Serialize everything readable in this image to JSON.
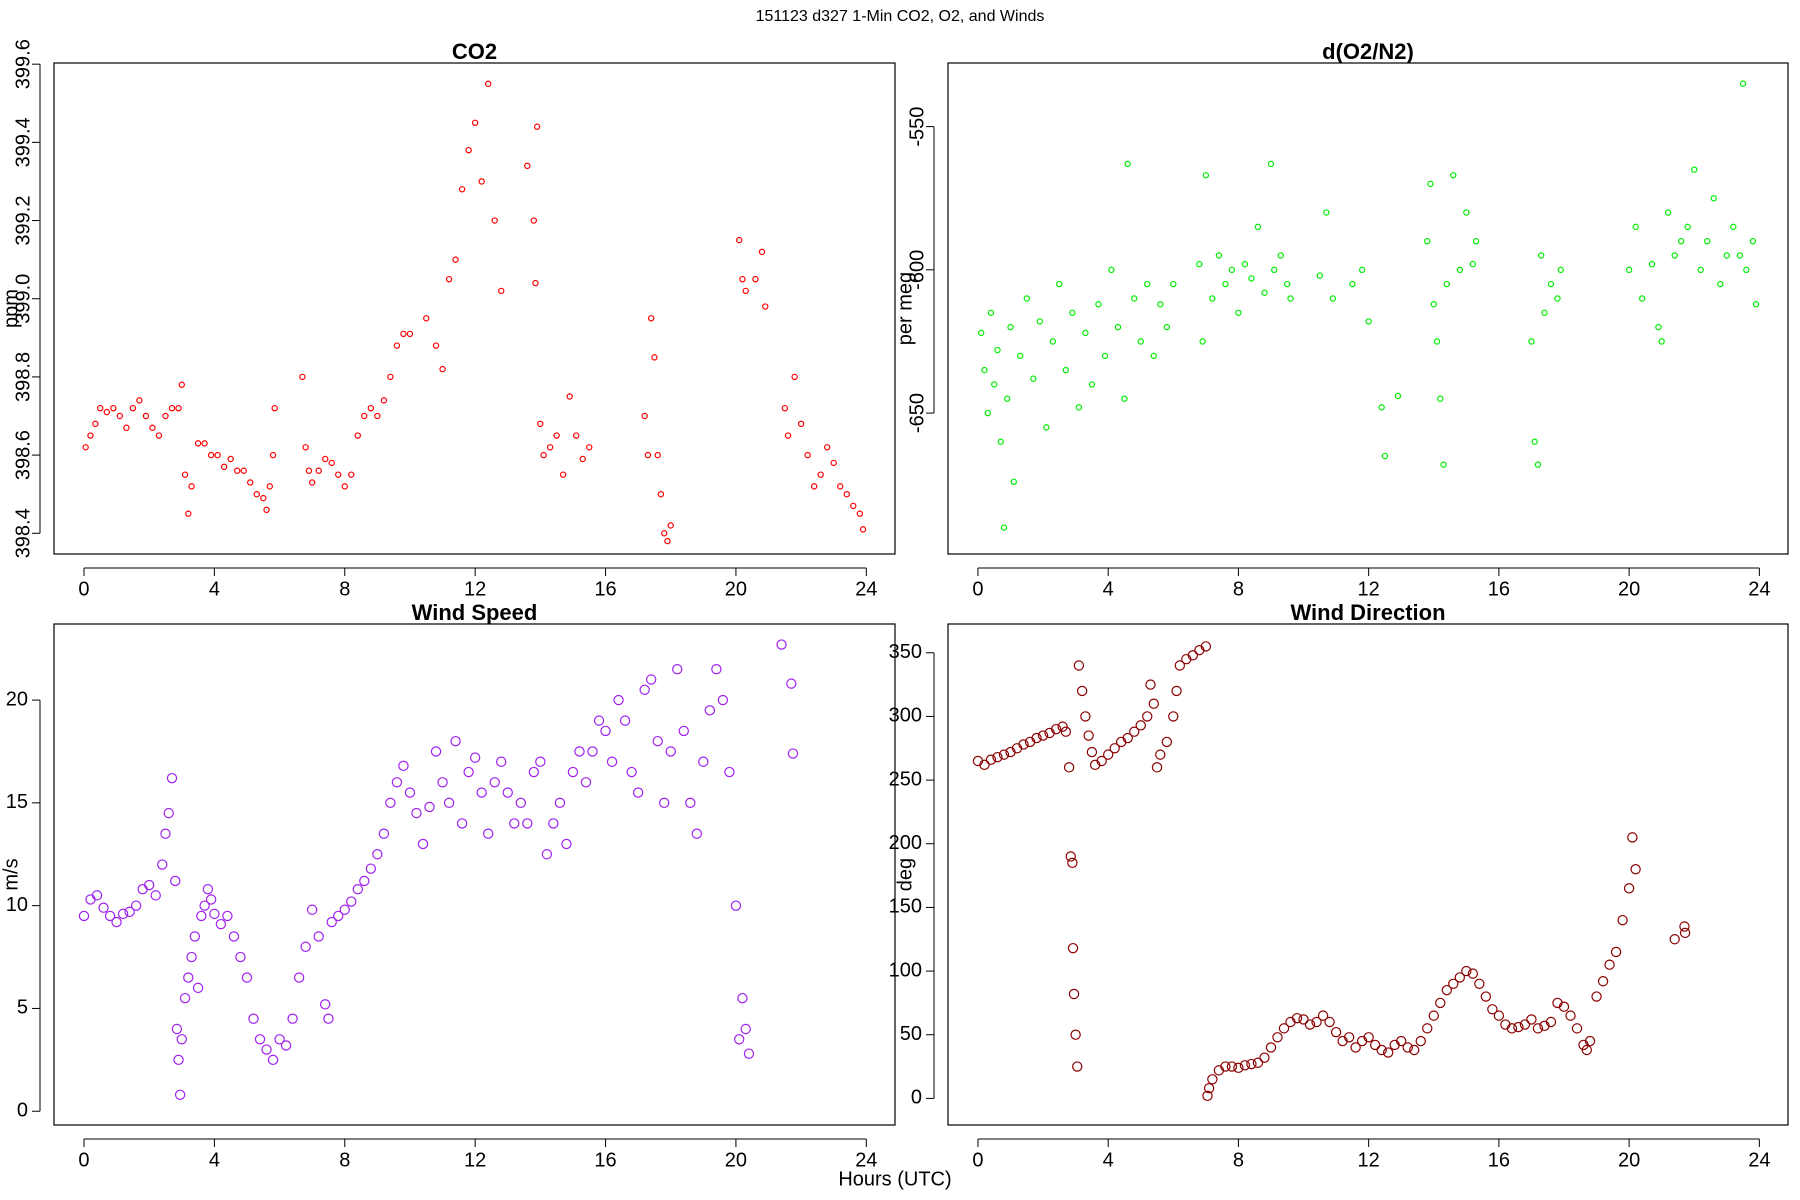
{
  "title": "151123   d327   1-Min CO2, O2, and Winds",
  "x_label": "Hours (UTC)",
  "chart_data": [
    {
      "type": "scatter",
      "title": "CO2",
      "y_label": "ppm",
      "color": "#ff0000",
      "marker_size": 2.6,
      "xlim": [
        -0.92,
        24.88
      ],
      "xticks": [
        0,
        4,
        8,
        12,
        16,
        20,
        24
      ],
      "ylim": [
        398.347,
        399.603
      ],
      "yticks": [
        398.4,
        398.6,
        398.8,
        {
          "value": 399,
          "label": "399.0"
        },
        399.2,
        399.4,
        399.6
      ],
      "x": [
        0.05,
        0.2,
        0.35,
        0.5,
        0.7,
        0.9,
        1.1,
        1.3,
        1.5,
        1.7,
        1.9,
        2.1,
        2.3,
        2.5,
        2.7,
        2.9,
        3.0,
        3.1,
        3.2,
        3.3,
        3.5,
        3.7,
        3.9,
        4.1,
        4.3,
        4.5,
        4.7,
        4.9,
        5.1,
        5.3,
        5.5,
        5.6,
        5.7,
        5.8,
        5.85,
        6.7,
        6.8,
        6.9,
        7.0,
        7.2,
        7.4,
        7.6,
        7.8,
        8.0,
        8.2,
        8.4,
        8.6,
        8.8,
        9.0,
        9.2,
        9.4,
        9.6,
        9.8,
        10.0,
        10.5,
        10.8,
        11.0,
        11.2,
        11.4,
        11.6,
        11.8,
        12.0,
        12.2,
        12.4,
        12.6,
        12.8,
        13.6,
        13.8,
        13.85,
        13.9,
        14.0,
        14.1,
        14.3,
        14.5,
        14.7,
        14.9,
        15.1,
        15.3,
        15.5,
        17.2,
        17.3,
        17.4,
        17.5,
        17.6,
        17.7,
        17.8,
        17.9,
        18.0,
        20.1,
        20.2,
        20.3,
        20.6,
        20.8,
        20.9,
        21.5,
        21.6,
        21.8,
        22.0,
        22.2,
        22.4,
        22.6,
        22.8,
        23.0,
        23.2,
        23.4,
        23.6,
        23.8,
        23.9
      ],
      "values": [
        398.62,
        398.65,
        398.68,
        398.72,
        398.71,
        398.72,
        398.7,
        398.67,
        398.72,
        398.74,
        398.7,
        398.67,
        398.65,
        398.7,
        398.72,
        398.72,
        398.78,
        398.55,
        398.45,
        398.52,
        398.63,
        398.63,
        398.6,
        398.6,
        398.57,
        398.59,
        398.56,
        398.56,
        398.53,
        398.5,
        398.49,
        398.46,
        398.52,
        398.6,
        398.72,
        398.8,
        398.62,
        398.56,
        398.53,
        398.56,
        398.59,
        398.58,
        398.55,
        398.52,
        398.55,
        398.65,
        398.7,
        398.72,
        398.7,
        398.74,
        398.8,
        398.88,
        398.91,
        398.91,
        398.95,
        398.88,
        398.82,
        399.05,
        399.1,
        399.28,
        399.38,
        399.45,
        399.3,
        399.55,
        399.2,
        399.02,
        399.34,
        399.2,
        399.04,
        399.44,
        398.68,
        398.6,
        398.62,
        398.65,
        398.55,
        398.75,
        398.65,
        398.59,
        398.62,
        398.7,
        398.6,
        398.95,
        398.85,
        398.6,
        398.5,
        398.4,
        398.38,
        398.42,
        399.15,
        399.05,
        399.02,
        399.05,
        399.12,
        398.98,
        398.72,
        398.65,
        398.8,
        398.68,
        398.6,
        398.52,
        398.55,
        398.62,
        398.58,
        398.52,
        398.5,
        398.47,
        398.45,
        398.41
      ]
    },
    {
      "type": "scatter",
      "title": "d(O2/N2)",
      "y_label": "per meg",
      "color": "#00ee00",
      "marker_size": 2.6,
      "xlim": [
        -0.92,
        24.88
      ],
      "xticks": [
        0,
        4,
        8,
        12,
        16,
        20,
        24
      ],
      "ylim": [
        -699.2,
        -527.8
      ],
      "yticks": [
        -550,
        -600,
        -650
      ],
      "x": [
        0.1,
        0.2,
        0.3,
        0.4,
        0.5,
        0.6,
        0.7,
        0.8,
        0.9,
        1.0,
        1.1,
        1.3,
        1.5,
        1.7,
        1.9,
        2.1,
        2.3,
        2.5,
        2.7,
        2.9,
        3.1,
        3.3,
        3.5,
        3.7,
        3.9,
        4.1,
        4.3,
        4.5,
        4.6,
        4.8,
        5.0,
        5.2,
        5.4,
        5.6,
        5.8,
        6.0,
        6.8,
        6.9,
        7.0,
        7.2,
        7.4,
        7.6,
        7.8,
        8.0,
        8.2,
        8.4,
        8.6,
        8.8,
        9.0,
        9.1,
        9.3,
        9.5,
        9.6,
        10.5,
        10.7,
        10.9,
        11.5,
        11.8,
        12.0,
        12.4,
        12.5,
        12.9,
        13.8,
        13.9,
        14.0,
        14.1,
        14.2,
        14.3,
        14.4,
        14.6,
        14.8,
        15.0,
        15.2,
        15.3,
        17.0,
        17.1,
        17.2,
        17.3,
        17.4,
        17.6,
        17.8,
        17.9,
        20.0,
        20.2,
        20.4,
        20.7,
        20.9,
        21.0,
        21.2,
        21.4,
        21.6,
        21.8,
        22.0,
        22.2,
        22.4,
        22.6,
        22.8,
        23.0,
        23.2,
        23.4,
        23.5,
        23.6,
        23.8,
        23.9
      ],
      "values": [
        -622,
        -635,
        -650,
        -615,
        -640,
        -628,
        -660,
        -690,
        -645,
        -620,
        -674,
        -630,
        -610,
        -638,
        -618,
        -655,
        -625,
        -605,
        -635,
        -615,
        -648,
        -622,
        -640,
        -612,
        -630,
        -600,
        -620,
        -645,
        -563,
        -610,
        -625,
        -605,
        -630,
        -612,
        -620,
        -605,
        -598,
        -625,
        -567,
        -610,
        -595,
        -605,
        -600,
        -615,
        -598,
        -603,
        -585,
        -608,
        -563,
        -600,
        -595,
        -605,
        -610,
        -602,
        -580,
        -610,
        -605,
        -600,
        -618,
        -648,
        -665,
        -644,
        -590,
        -570,
        -612,
        -625,
        -645,
        -668,
        -605,
        -567,
        -600,
        -580,
        -598,
        -590,
        -625,
        -660,
        -668,
        -595,
        -615,
        -605,
        -610,
        -600,
        -600,
        -585,
        -610,
        -598,
        -620,
        -625,
        -580,
        -595,
        -590,
        -585,
        -565,
        -600,
        -590,
        -575,
        -605,
        -595,
        -585,
        -595,
        -535,
        -600,
        -590,
        -612
      ]
    },
    {
      "type": "scatter",
      "title": "Wind Speed",
      "y_label": "m/s",
      "color": "#a020f0",
      "marker_size": 4.6,
      "xlim": [
        -0.92,
        24.88
      ],
      "xticks": [
        0,
        4,
        8,
        12,
        16,
        20,
        24
      ],
      "ylim": [
        -0.67,
        23.7
      ],
      "yticks": [
        0,
        5,
        10,
        15,
        20
      ],
      "x": [
        0.0,
        0.2,
        0.4,
        0.6,
        0.8,
        1.0,
        1.2,
        1.4,
        1.6,
        1.8,
        2.0,
        2.2,
        2.4,
        2.5,
        2.6,
        2.7,
        2.8,
        2.85,
        2.9,
        2.95,
        3.0,
        3.1,
        3.2,
        3.3,
        3.4,
        3.5,
        3.6,
        3.7,
        3.8,
        3.9,
        4.0,
        4.2,
        4.4,
        4.6,
        4.8,
        5.0,
        5.2,
        5.4,
        5.6,
        5.8,
        6.0,
        6.2,
        6.4,
        6.6,
        6.8,
        7.0,
        7.2,
        7.4,
        7.5,
        7.6,
        7.8,
        8.0,
        8.2,
        8.4,
        8.6,
        8.8,
        9.0,
        9.2,
        9.4,
        9.6,
        9.8,
        10.0,
        10.2,
        10.4,
        10.6,
        10.8,
        11.0,
        11.2,
        11.4,
        11.6,
        11.8,
        12.0,
        12.2,
        12.4,
        12.6,
        12.8,
        13.0,
        13.2,
        13.4,
        13.6,
        13.8,
        14.0,
        14.2,
        14.4,
        14.6,
        14.8,
        15.0,
        15.2,
        15.4,
        15.6,
        15.8,
        16.0,
        16.2,
        16.4,
        16.6,
        16.8,
        17.0,
        17.2,
        17.4,
        17.6,
        17.8,
        18.0,
        18.2,
        18.4,
        18.6,
        18.8,
        19.0,
        19.2,
        19.4,
        19.6,
        19.8,
        20.0,
        20.1,
        20.2,
        20.3,
        20.4,
        21.4,
        21.7,
        21.75
      ],
      "values": [
        9.5,
        10.3,
        10.5,
        9.9,
        9.5,
        9.2,
        9.6,
        9.7,
        10.0,
        10.8,
        11.0,
        10.5,
        12.0,
        13.5,
        14.5,
        16.2,
        11.2,
        4.0,
        2.5,
        0.8,
        3.5,
        5.5,
        6.5,
        7.5,
        8.5,
        6.0,
        9.5,
        10.0,
        10.8,
        10.3,
        9.6,
        9.1,
        9.5,
        8.5,
        7.5,
        6.5,
        4.5,
        3.5,
        3.0,
        2.5,
        3.5,
        3.2,
        4.5,
        6.5,
        8.0,
        9.8,
        8.5,
        5.2,
        4.5,
        9.2,
        9.5,
        9.8,
        10.2,
        10.8,
        11.2,
        11.8,
        12.5,
        13.5,
        15.0,
        16.0,
        16.8,
        15.5,
        14.5,
        13.0,
        14.8,
        17.5,
        16.0,
        15.0,
        18.0,
        14.0,
        16.5,
        17.2,
        15.5,
        13.5,
        16.0,
        17.0,
        15.5,
        14.0,
        15.0,
        14.0,
        16.5,
        17.0,
        12.5,
        14.0,
        15.0,
        13.0,
        16.5,
        17.5,
        16.0,
        17.5,
        19.0,
        18.5,
        17.0,
        20.0,
        19.0,
        16.5,
        15.5,
        20.5,
        21.0,
        18.0,
        15.0,
        17.5,
        21.5,
        18.5,
        15.0,
        13.5,
        17.0,
        19.5,
        21.5,
        20.0,
        16.5,
        10.0,
        3.5,
        5.5,
        4.0,
        2.8,
        22.7,
        20.8,
        17.4
      ]
    },
    {
      "type": "scatter",
      "title": "Wind Direction",
      "y_label": "deg",
      "color": "#8b0000",
      "marker_size": 4.6,
      "xlim": [
        -0.92,
        24.88
      ],
      "xticks": [
        0,
        4,
        8,
        12,
        16,
        20,
        24
      ],
      "ylim": [
        -20.9,
        372.6
      ],
      "yticks": [
        0,
        50,
        100,
        150,
        200,
        250,
        300,
        350
      ],
      "x": [
        0.0,
        0.2,
        0.4,
        0.6,
        0.8,
        1.0,
        1.2,
        1.4,
        1.6,
        1.8,
        2.0,
        2.2,
        2.4,
        2.6,
        2.7,
        2.8,
        2.85,
        2.9,
        2.92,
        2.95,
        3.0,
        3.05,
        3.1,
        3.2,
        3.3,
        3.4,
        3.5,
        3.6,
        3.8,
        4.0,
        4.2,
        4.4,
        4.6,
        4.8,
        5.0,
        5.2,
        5.3,
        5.4,
        5.5,
        5.6,
        5.8,
        6.0,
        6.1,
        6.2,
        6.4,
        6.6,
        6.8,
        7.0,
        7.05,
        7.1,
        7.2,
        7.4,
        7.6,
        7.8,
        8.0,
        8.2,
        8.4,
        8.6,
        8.8,
        9.0,
        9.2,
        9.4,
        9.6,
        9.8,
        10.0,
        10.2,
        10.4,
        10.6,
        10.8,
        11.0,
        11.2,
        11.4,
        11.6,
        11.8,
        12.0,
        12.2,
        12.4,
        12.6,
        12.8,
        13.0,
        13.2,
        13.4,
        13.6,
        13.8,
        14.0,
        14.2,
        14.4,
        14.6,
        14.8,
        15.0,
        15.2,
        15.4,
        15.6,
        15.8,
        16.0,
        16.2,
        16.4,
        16.6,
        16.8,
        17.0,
        17.2,
        17.4,
        17.6,
        17.8,
        18.0,
        18.2,
        18.4,
        18.6,
        18.7,
        18.8,
        19.0,
        19.2,
        19.4,
        19.6,
        19.8,
        20.0,
        20.1,
        20.2,
        21.4,
        21.7,
        21.72
      ],
      "values": [
        265,
        262,
        266,
        268,
        270,
        272,
        275,
        278,
        280,
        283,
        285,
        287,
        290,
        292,
        288,
        260,
        190,
        185,
        118,
        82,
        50,
        25,
        340,
        320,
        300,
        285,
        272,
        262,
        265,
        270,
        275,
        280,
        283,
        288,
        293,
        300,
        325,
        310,
        260,
        270,
        280,
        300,
        320,
        340,
        345,
        348,
        352,
        355,
        2,
        8,
        15,
        22,
        25,
        25,
        24,
        26,
        27,
        28,
        32,
        40,
        48,
        55,
        60,
        63,
        62,
        58,
        60,
        65,
        60,
        52,
        45,
        48,
        40,
        45,
        48,
        42,
        38,
        36,
        42,
        45,
        40,
        38,
        45,
        55,
        65,
        75,
        85,
        90,
        95,
        100,
        98,
        90,
        80,
        70,
        65,
        58,
        55,
        56,
        58,
        62,
        55,
        57,
        60,
        75,
        72,
        65,
        55,
        42,
        38,
        45,
        80,
        92,
        105,
        115,
        140,
        165,
        205,
        180,
        125,
        135,
        130
      ]
    }
  ]
}
